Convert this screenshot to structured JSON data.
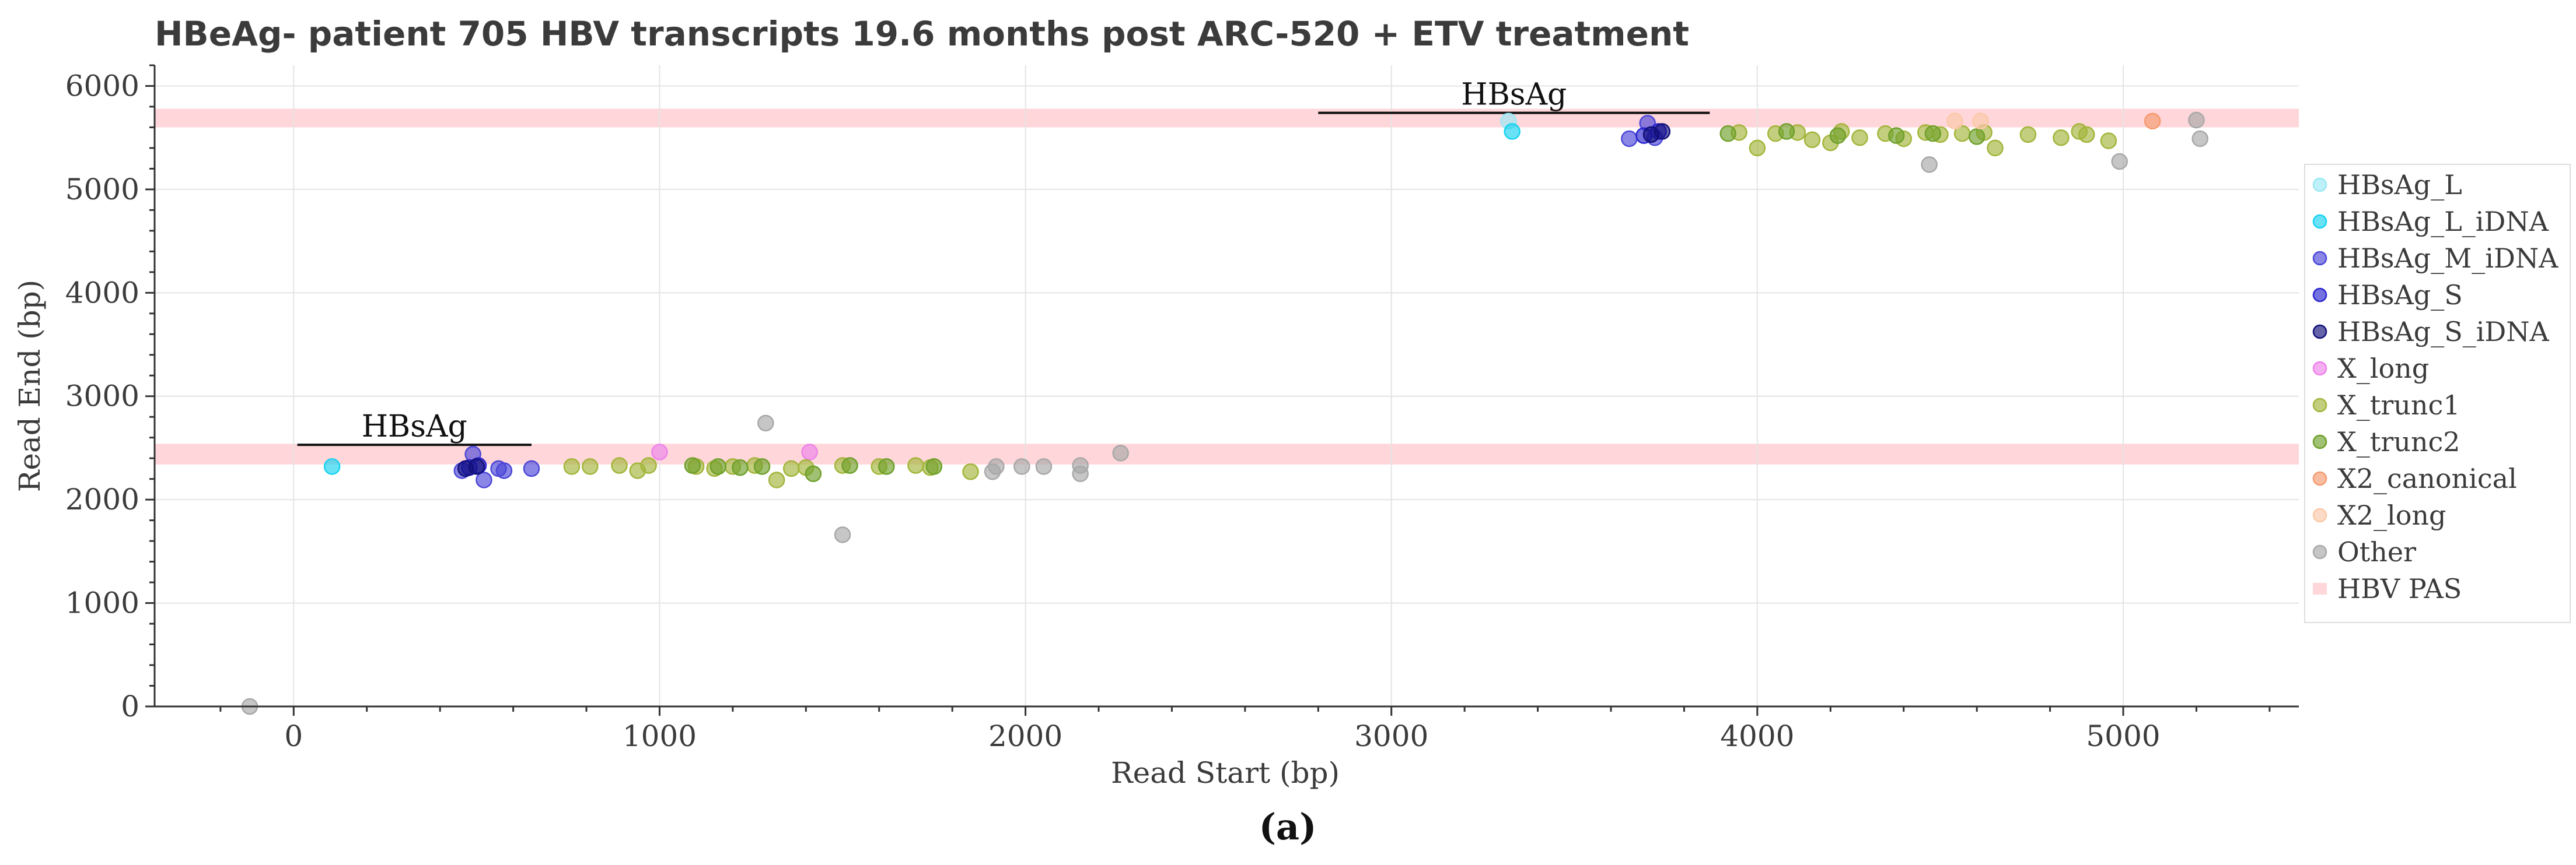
{
  "chart_data": {
    "type": "scatter",
    "title": "HBeAg- patient 705 HBV transcripts 19.6 months post ARC-520 + ETV treatment",
    "xlabel": "Read Start (bp)",
    "ylabel": "Read End (bp)",
    "xlim": [
      -380,
      5480
    ],
    "ylim": [
      0,
      6200
    ],
    "xticks": [
      0,
      1000,
      2000,
      3000,
      4000,
      5000
    ],
    "yticks": [
      0,
      1000,
      2000,
      3000,
      4000,
      5000,
      6000
    ],
    "grid": true,
    "legend_position": "right",
    "caption": "(a)",
    "pas_bands": [
      {
        "name": "HBV PAS",
        "y_range": [
          2340,
          2540
        ],
        "color": "#ffd6d9"
      },
      {
        "name": "HBV PAS",
        "y_range": [
          5600,
          5780
        ],
        "color": "#ffd6d9"
      }
    ],
    "annotations": [
      {
        "text": "HBsAg",
        "x_range": [
          10,
          650
        ],
        "y": 2530
      },
      {
        "text": "HBsAg",
        "x_range": [
          2800,
          3870
        ],
        "y": 5740
      }
    ],
    "series": [
      {
        "name": "HBsAg_L",
        "color": "#9be8f5",
        "points": [
          [
            3320,
            5660
          ]
        ]
      },
      {
        "name": "HBsAg_L_iDNA",
        "color": "#18d3f0",
        "points": [
          [
            105,
            2320
          ],
          [
            3330,
            5560
          ]
        ]
      },
      {
        "name": "HBsAg_M_iDNA",
        "color": "#4c47d8",
        "points": [
          [
            460,
            2280
          ],
          [
            490,
            2440
          ],
          [
            520,
            2190
          ],
          [
            560,
            2300
          ],
          [
            575,
            2280
          ],
          [
            650,
            2300
          ],
          [
            3650,
            5490
          ],
          [
            3700,
            5640
          ],
          [
            3720,
            5500
          ]
        ]
      },
      {
        "name": "HBsAg_S",
        "color": "#2a25d0",
        "points": [
          [
            480,
            2310
          ],
          [
            505,
            2330
          ],
          [
            3690,
            5520
          ],
          [
            3730,
            5560
          ]
        ]
      },
      {
        "name": "HBsAg_S_iDNA",
        "color": "#12107a",
        "points": [
          [
            470,
            2300
          ],
          [
            500,
            2320
          ],
          [
            3710,
            5530
          ],
          [
            3740,
            5560
          ]
        ]
      },
      {
        "name": "X_long",
        "color": "#ee82ea",
        "points": [
          [
            1000,
            2460
          ],
          [
            1410,
            2460
          ]
        ]
      },
      {
        "name": "X_trunc1",
        "color": "#a3b53a",
        "points": [
          [
            760,
            2320
          ],
          [
            810,
            2320
          ],
          [
            890,
            2330
          ],
          [
            940,
            2280
          ],
          [
            970,
            2330
          ],
          [
            1100,
            2320
          ],
          [
            1150,
            2300
          ],
          [
            1200,
            2320
          ],
          [
            1260,
            2330
          ],
          [
            1320,
            2190
          ],
          [
            1360,
            2300
          ],
          [
            1400,
            2310
          ],
          [
            1500,
            2330
          ],
          [
            1600,
            2320
          ],
          [
            1700,
            2330
          ],
          [
            1740,
            2310
          ],
          [
            1850,
            2270
          ],
          [
            3950,
            5550
          ],
          [
            4000,
            5400
          ],
          [
            4050,
            5540
          ],
          [
            4110,
            5550
          ],
          [
            4150,
            5480
          ],
          [
            4200,
            5450
          ],
          [
            4230,
            5560
          ],
          [
            4280,
            5500
          ],
          [
            4350,
            5540
          ],
          [
            4400,
            5490
          ],
          [
            4460,
            5550
          ],
          [
            4500,
            5530
          ],
          [
            4560,
            5540
          ],
          [
            4620,
            5550
          ],
          [
            4650,
            5400
          ],
          [
            4740,
            5530
          ],
          [
            4830,
            5500
          ],
          [
            4880,
            5560
          ],
          [
            4900,
            5530
          ],
          [
            4960,
            5470
          ]
        ]
      },
      {
        "name": "X_trunc2",
        "color": "#6fa02a",
        "points": [
          [
            1090,
            2330
          ],
          [
            1160,
            2320
          ],
          [
            1220,
            2310
          ],
          [
            1280,
            2320
          ],
          [
            1420,
            2250
          ],
          [
            1520,
            2330
          ],
          [
            1620,
            2320
          ],
          [
            1750,
            2320
          ],
          [
            3920,
            5540
          ],
          [
            4080,
            5560
          ],
          [
            4220,
            5520
          ],
          [
            4380,
            5520
          ],
          [
            4480,
            5540
          ],
          [
            4600,
            5510
          ]
        ]
      },
      {
        "name": "X2_canonical",
        "color": "#f59a6e",
        "points": [
          [
            5080,
            5660
          ]
        ]
      },
      {
        "name": "X2_long",
        "color": "#fbc8a8",
        "points": [
          [
            4540,
            5660
          ],
          [
            4610,
            5660
          ]
        ]
      },
      {
        "name": "Other",
        "color": "#a8a8a8",
        "points": [
          [
            1290,
            2740
          ],
          [
            1500,
            1660
          ],
          [
            1910,
            2270
          ],
          [
            1920,
            2320
          ],
          [
            1990,
            2320
          ],
          [
            2050,
            2320
          ],
          [
            2150,
            2250
          ],
          [
            2150,
            2330
          ],
          [
            2260,
            2450
          ],
          [
            4470,
            5240
          ],
          [
            4990,
            5270
          ],
          [
            5200,
            5670
          ],
          [
            5210,
            5490
          ],
          [
            -120,
            0
          ]
        ]
      },
      {
        "name": "HBV PAS",
        "color": "#ffd6d9",
        "points": []
      }
    ]
  }
}
